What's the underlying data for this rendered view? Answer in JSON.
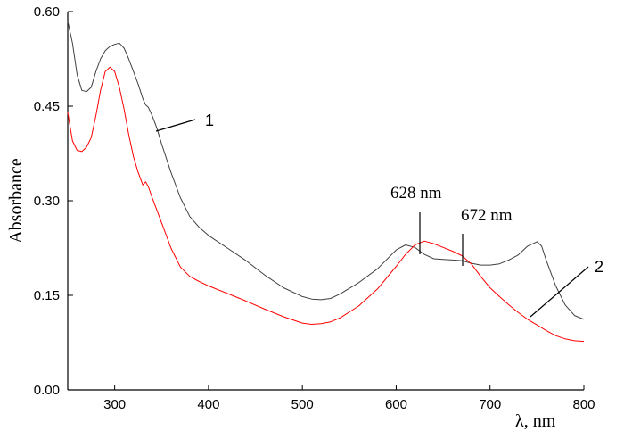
{
  "chart_data": {
    "type": "line",
    "title": "",
    "xlabel": "λ, nm",
    "ylabel": "Absorbance",
    "xlim": [
      250,
      800
    ],
    "ylim": [
      0.0,
      0.6
    ],
    "x_ticks": [
      300,
      400,
      500,
      600,
      700,
      800
    ],
    "y_ticks": [
      0.0,
      0.15,
      0.3,
      0.45,
      0.6
    ],
    "x_tick_labels": [
      "300",
      "400",
      "500",
      "600",
      "700",
      "800"
    ],
    "y_tick_labels": [
      "0.00",
      "0.15",
      "0.30",
      "0.45",
      "0.60"
    ],
    "grid": false,
    "series": [
      {
        "label": "1",
        "color": "#404040",
        "points": [
          [
            250,
            0.585
          ],
          [
            255,
            0.55
          ],
          [
            260,
            0.5
          ],
          [
            265,
            0.475
          ],
          [
            270,
            0.473
          ],
          [
            275,
            0.48
          ],
          [
            280,
            0.505
          ],
          [
            285,
            0.525
          ],
          [
            290,
            0.538
          ],
          [
            295,
            0.545
          ],
          [
            300,
            0.548
          ],
          [
            305,
            0.55
          ],
          [
            310,
            0.542
          ],
          [
            315,
            0.525
          ],
          [
            320,
            0.505
          ],
          [
            325,
            0.485
          ],
          [
            330,
            0.462
          ],
          [
            333,
            0.452
          ],
          [
            336,
            0.448
          ],
          [
            340,
            0.435
          ],
          [
            345,
            0.415
          ],
          [
            350,
            0.39
          ],
          [
            360,
            0.345
          ],
          [
            370,
            0.305
          ],
          [
            380,
            0.275
          ],
          [
            390,
            0.258
          ],
          [
            400,
            0.245
          ],
          [
            420,
            0.225
          ],
          [
            440,
            0.205
          ],
          [
            460,
            0.182
          ],
          [
            480,
            0.162
          ],
          [
            500,
            0.148
          ],
          [
            510,
            0.144
          ],
          [
            520,
            0.143
          ],
          [
            530,
            0.145
          ],
          [
            540,
            0.152
          ],
          [
            560,
            0.17
          ],
          [
            580,
            0.192
          ],
          [
            600,
            0.222
          ],
          [
            610,
            0.23
          ],
          [
            620,
            0.226
          ],
          [
            630,
            0.215
          ],
          [
            640,
            0.208
          ],
          [
            650,
            0.207
          ],
          [
            660,
            0.206
          ],
          [
            670,
            0.205
          ],
          [
            680,
            0.201
          ],
          [
            690,
            0.198
          ],
          [
            700,
            0.198
          ],
          [
            710,
            0.2
          ],
          [
            720,
            0.206
          ],
          [
            730,
            0.214
          ],
          [
            740,
            0.228
          ],
          [
            750,
            0.235
          ],
          [
            755,
            0.228
          ],
          [
            760,
            0.205
          ],
          [
            770,
            0.165
          ],
          [
            780,
            0.135
          ],
          [
            790,
            0.118
          ],
          [
            800,
            0.112
          ]
        ]
      },
      {
        "label": "2",
        "color": "#ff0000",
        "points": [
          [
            250,
            0.44
          ],
          [
            255,
            0.395
          ],
          [
            260,
            0.38
          ],
          [
            265,
            0.378
          ],
          [
            270,
            0.385
          ],
          [
            275,
            0.4
          ],
          [
            280,
            0.435
          ],
          [
            285,
            0.475
          ],
          [
            290,
            0.505
          ],
          [
            295,
            0.512
          ],
          [
            300,
            0.505
          ],
          [
            305,
            0.48
          ],
          [
            310,
            0.445
          ],
          [
            315,
            0.405
          ],
          [
            320,
            0.37
          ],
          [
            325,
            0.345
          ],
          [
            330,
            0.325
          ],
          [
            333,
            0.33
          ],
          [
            336,
            0.322
          ],
          [
            340,
            0.305
          ],
          [
            345,
            0.285
          ],
          [
            350,
            0.265
          ],
          [
            360,
            0.225
          ],
          [
            370,
            0.195
          ],
          [
            380,
            0.18
          ],
          [
            390,
            0.172
          ],
          [
            400,
            0.165
          ],
          [
            420,
            0.153
          ],
          [
            440,
            0.141
          ],
          [
            460,
            0.128
          ],
          [
            480,
            0.116
          ],
          [
            500,
            0.106
          ],
          [
            510,
            0.104
          ],
          [
            520,
            0.105
          ],
          [
            530,
            0.108
          ],
          [
            540,
            0.114
          ],
          [
            560,
            0.133
          ],
          [
            580,
            0.16
          ],
          [
            600,
            0.196
          ],
          [
            610,
            0.215
          ],
          [
            620,
            0.23
          ],
          [
            630,
            0.236
          ],
          [
            640,
            0.232
          ],
          [
            650,
            0.226
          ],
          [
            660,
            0.22
          ],
          [
            670,
            0.213
          ],
          [
            680,
            0.2
          ],
          [
            690,
            0.18
          ],
          [
            700,
            0.162
          ],
          [
            710,
            0.148
          ],
          [
            720,
            0.135
          ],
          [
            730,
            0.123
          ],
          [
            740,
            0.112
          ],
          [
            750,
            0.103
          ],
          [
            760,
            0.094
          ],
          [
            770,
            0.086
          ],
          [
            780,
            0.081
          ],
          [
            790,
            0.078
          ],
          [
            800,
            0.077
          ]
        ]
      }
    ],
    "annotations": {
      "peak1": "628 nm",
      "peak2": "672 nm",
      "curve1_label": "1",
      "curve2_label": "2"
    }
  }
}
